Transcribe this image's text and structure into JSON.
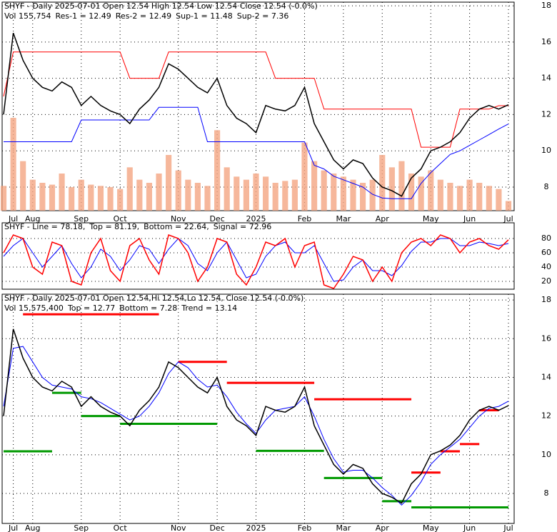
{
  "chart_data": [
    {
      "type": "line",
      "title": "SHYF - Daily 2025-07-01 Open 12.54  High 12.54  Low 12.54  Close 12.54 (-0.0%)",
      "legend": [
        {
          "text": "Vol 155,754",
          "color": "#000000"
        },
        {
          "text": "Res-1 = 12.49",
          "color": "#ff0000"
        },
        {
          "text": "Res-2 = 12.49",
          "color": "#cc0000"
        },
        {
          "text": "Sup-1 = 11.48",
          "color": "#0000ff"
        },
        {
          "text": "Sup-2 = 7.36",
          "color": "#009900"
        }
      ],
      "categories": [
        null,
        "Jul",
        null,
        "Aug",
        null,
        null,
        null,
        null,
        "Sep",
        null,
        null,
        null,
        "Oct",
        null,
        null,
        null,
        null,
        null,
        "Nov",
        null,
        null,
        null,
        "Dec",
        null,
        null,
        null,
        "2025",
        null,
        null,
        null,
        null,
        "Feb",
        null,
        null,
        null,
        "Mar",
        null,
        null,
        null,
        "Apr",
        null,
        null,
        null,
        null,
        "May",
        null,
        null,
        null,
        "Jun",
        null,
        null,
        null,
        "Jul"
      ],
      "ylim": [
        6.7,
        18.2
      ],
      "yticks": [
        8,
        10,
        12,
        14,
        16,
        18
      ],
      "grid": true,
      "series": [
        {
          "color": "#000000",
          "values": [
            12.0,
            16.5,
            15.0,
            14.0,
            13.5,
            13.3,
            13.8,
            13.5,
            12.5,
            13.0,
            12.5,
            12.2,
            12.0,
            11.5,
            12.3,
            12.8,
            13.5,
            14.8,
            14.5,
            14.0,
            13.5,
            13.2,
            14.0,
            12.5,
            11.8,
            11.5,
            11.0,
            12.5,
            12.3,
            12.2,
            12.5,
            13.5,
            11.5,
            10.5,
            9.5,
            9.0,
            9.5,
            9.3,
            8.5,
            8.0,
            7.8,
            7.5,
            8.5,
            9.0,
            10.0,
            10.2,
            10.5,
            11.0,
            11.8,
            12.3,
            12.5,
            12.3,
            12.54
          ]
        },
        {
          "color": "#ff0000",
          "values": [
            13.0,
            15.45,
            15.45,
            15.45,
            15.45,
            15.45,
            15.45,
            15.45,
            15.45,
            15.45,
            15.45,
            15.45,
            15.45,
            14.0,
            14.0,
            14.0,
            14.0,
            15.45,
            15.45,
            15.45,
            15.45,
            15.45,
            15.45,
            15.45,
            15.45,
            15.45,
            15.45,
            15.45,
            14.0,
            14.0,
            14.0,
            14.0,
            14.0,
            12.3,
            12.3,
            12.3,
            12.3,
            12.3,
            12.3,
            12.3,
            12.3,
            12.3,
            12.3,
            10.2,
            10.2,
            10.2,
            10.2,
            12.3,
            12.3,
            12.3,
            12.3,
            12.49,
            12.49
          ]
        },
        {
          "color": "#0000ff",
          "values": [
            10.5,
            10.5,
            10.5,
            10.5,
            10.5,
            10.5,
            10.5,
            10.5,
            11.7,
            11.7,
            11.7,
            11.7,
            11.7,
            11.7,
            11.7,
            11.7,
            12.4,
            12.4,
            12.4,
            12.4,
            12.4,
            10.5,
            10.5,
            10.5,
            10.5,
            10.5,
            10.5,
            10.5,
            10.5,
            10.5,
            10.5,
            10.5,
            9.2,
            9.0,
            8.6,
            8.4,
            8.2,
            8.0,
            7.6,
            7.4,
            7.36,
            7.36,
            7.36,
            8.2,
            8.8,
            9.3,
            9.8,
            10.0,
            10.3,
            10.6,
            10.9,
            11.2,
            11.48
          ]
        }
      ],
      "volume": {
        "color": "#f4a582",
        "values": [
          400000,
          1500000,
          800000,
          500000,
          450000,
          420000,
          600000,
          380000,
          500000,
          420000,
          400000,
          380000,
          350000,
          700000,
          500000,
          450000,
          600000,
          900000,
          650000,
          500000,
          450000,
          400000,
          1300000,
          700000,
          550000,
          500000,
          600000,
          550000,
          450000,
          480000,
          500000,
          1100000,
          800000,
          650000,
          600000,
          550000,
          500000,
          450000,
          500000,
          900000,
          700000,
          800000,
          600000,
          550000,
          650000,
          500000,
          450000,
          400000,
          500000,
          450000,
          400000,
          350000,
          155754
        ]
      }
    },
    {
      "type": "line",
      "legend": [
        {
          "text": "SHYF - Line = 78.18,",
          "color": "#ff0000"
        },
        {
          "text": "Top = 81.19,",
          "color": "#000000"
        },
        {
          "text": "Bottom = 22.64,",
          "color": "#000000"
        },
        {
          "text": "Signal = 72.96",
          "color": "#0000ff"
        }
      ],
      "ylim": [
        9,
        102
      ],
      "yticks": [
        20,
        40,
        60,
        80
      ],
      "grid": true,
      "series": [
        {
          "color": "#ff0000",
          "values": [
            60,
            85,
            80,
            40,
            30,
            75,
            70,
            20,
            15,
            60,
            80,
            35,
            20,
            70,
            80,
            50,
            30,
            85,
            80,
            60,
            20,
            40,
            80,
            75,
            30,
            15,
            40,
            75,
            70,
            80,
            40,
            70,
            75,
            15,
            10,
            30,
            55,
            50,
            20,
            40,
            20,
            60,
            75,
            80,
            70,
            85,
            80,
            60,
            75,
            80,
            70,
            65,
            78.18
          ]
        },
        {
          "color": "#0000ff",
          "values": [
            55,
            70,
            80,
            60,
            40,
            55,
            70,
            45,
            25,
            40,
            65,
            55,
            35,
            50,
            70,
            65,
            45,
            65,
            80,
            70,
            45,
            35,
            60,
            75,
            50,
            25,
            30,
            55,
            70,
            75,
            60,
            60,
            70,
            45,
            20,
            22,
            40,
            50,
            35,
            35,
            28,
            42,
            62,
            75,
            75,
            80,
            80,
            70,
            70,
            75,
            73,
            70,
            72.96
          ]
        }
      ]
    },
    {
      "type": "line",
      "title": "SHYF - Daily 2025-07-01 Open 12.54,Hi 12.54,Lo 12.54, Close 12.54 (-0.0%)",
      "legend": [
        {
          "text": "Vol 15,575,400",
          "color": "#000000"
        },
        {
          "text": "Top = 12.77",
          "color": "#ff0000"
        },
        {
          "text": "Bottom = 7.28",
          "color": "#009900"
        },
        {
          "text": "Trend = 13.14",
          "color": "#0000ff"
        }
      ],
      "categories": [
        null,
        "Jul",
        null,
        "Aug",
        null,
        null,
        null,
        null,
        "Sep",
        null,
        null,
        null,
        "Oct",
        null,
        null,
        null,
        null,
        null,
        "Nov",
        null,
        null,
        null,
        "Dec",
        null,
        null,
        null,
        "2025",
        null,
        null,
        null,
        null,
        "Feb",
        null,
        null,
        null,
        "Mar",
        null,
        null,
        null,
        "Apr",
        null,
        null,
        null,
        null,
        "May",
        null,
        null,
        null,
        "Jun",
        null,
        null,
        null,
        "Jul"
      ],
      "ylim": [
        6.45,
        18.3
      ],
      "yticks": [
        8,
        10,
        12,
        14,
        16,
        18
      ],
      "grid": true,
      "series": [
        {
          "color": "#000000",
          "values": [
            12.0,
            16.5,
            15.0,
            14.0,
            13.5,
            13.3,
            13.8,
            13.5,
            12.5,
            13.0,
            12.5,
            12.2,
            12.0,
            11.5,
            12.3,
            12.8,
            13.5,
            14.8,
            14.5,
            14.0,
            13.5,
            13.2,
            14.0,
            12.5,
            11.8,
            11.5,
            11.0,
            12.5,
            12.3,
            12.2,
            12.5,
            13.5,
            11.5,
            10.5,
            9.5,
            9.0,
            9.5,
            9.3,
            8.5,
            8.0,
            7.8,
            7.5,
            8.5,
            9.0,
            10.0,
            10.2,
            10.5,
            11.0,
            11.8,
            12.3,
            12.5,
            12.3,
            12.54
          ]
        },
        {
          "color": "#0000ff",
          "values": [
            12.5,
            15.5,
            15.6,
            14.8,
            14.0,
            13.6,
            13.5,
            13.4,
            13.0,
            12.9,
            12.7,
            12.4,
            12.1,
            11.8,
            12.0,
            12.5,
            13.2,
            14.2,
            14.8,
            14.5,
            13.9,
            13.5,
            13.6,
            13.0,
            12.2,
            11.6,
            11.1,
            11.8,
            12.3,
            12.4,
            12.5,
            13.0,
            12.0,
            10.8,
            9.8,
            9.1,
            9.2,
            9.2,
            8.8,
            8.3,
            7.9,
            7.4,
            7.9,
            8.6,
            9.5,
            10.0,
            10.4,
            10.8,
            11.4,
            12.0,
            12.4,
            12.5,
            12.77
          ]
        }
      ],
      "segments": [
        {
          "color": "#ff0000",
          "from": 2,
          "to": 16,
          "y": 17.26
        },
        {
          "color": "#ff0000",
          "from": 18,
          "to": 23,
          "y": 14.8
        },
        {
          "color": "#ff0000",
          "from": 23,
          "to": 32,
          "y": 13.72
        },
        {
          "color": "#ff0000",
          "from": 32,
          "to": 42,
          "y": 12.87
        },
        {
          "color": "#ff0000",
          "from": 42,
          "to": 45,
          "y": 9.08
        },
        {
          "color": "#ff0000",
          "from": 45,
          "to": 47,
          "y": 10.18
        },
        {
          "color": "#ff0000",
          "from": 47,
          "to": 49,
          "y": 10.55
        },
        {
          "color": "#ff0000",
          "from": 49,
          "to": 51,
          "y": 12.3
        },
        {
          "color": "#009900",
          "from": 0,
          "to": 5,
          "y": 10.18
        },
        {
          "color": "#009900",
          "from": 5,
          "to": 8,
          "y": 13.2
        },
        {
          "color": "#009900",
          "from": 8,
          "to": 12,
          "y": 12.0
        },
        {
          "color": "#009900",
          "from": 12,
          "to": 22,
          "y": 11.6
        },
        {
          "color": "#009900",
          "from": 26,
          "to": 33,
          "y": 10.2
        },
        {
          "color": "#009900",
          "from": 33,
          "to": 39,
          "y": 8.8
        },
        {
          "color": "#009900",
          "from": 39,
          "to": 42,
          "y": 7.6
        },
        {
          "color": "#009900",
          "from": 42,
          "to": 52,
          "y": 7.28
        }
      ]
    }
  ]
}
